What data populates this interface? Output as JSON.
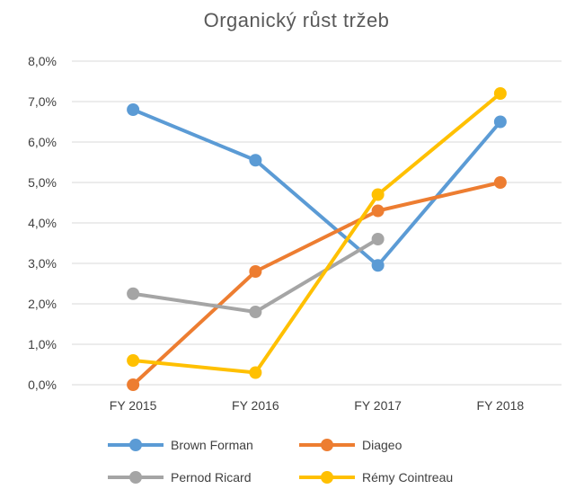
{
  "chart_data": {
    "type": "line",
    "title": "Organický růst tržeb",
    "xlabel": "",
    "ylabel": "",
    "categories": [
      "FY 2015",
      "FY 2016",
      "FY 2017",
      "FY 2018"
    ],
    "ylim": [
      0,
      8
    ],
    "yticks": [
      0,
      1,
      2,
      3,
      4,
      5,
      6,
      7,
      8
    ],
    "ytick_labels": [
      "0,0%",
      "1,0%",
      "2,0%",
      "3,0%",
      "4,0%",
      "5,0%",
      "6,0%",
      "7,0%",
      "8,0%"
    ],
    "grid": true,
    "legend_position": "bottom",
    "series": [
      {
        "name": "Brown Forman",
        "color": "#5b9bd5",
        "values": [
          6.8,
          5.55,
          2.95,
          6.5
        ]
      },
      {
        "name": "Diageo",
        "color": "#ed7d31",
        "values": [
          0.0,
          2.8,
          4.3,
          5.0
        ]
      },
      {
        "name": "Pernod Ricard",
        "color": "#a5a5a5",
        "values": [
          2.25,
          1.8,
          3.6,
          null
        ]
      },
      {
        "name": "Rémy Cointreau",
        "color": "#ffc000",
        "values": [
          0.6,
          0.3,
          4.7,
          7.2
        ]
      }
    ]
  }
}
